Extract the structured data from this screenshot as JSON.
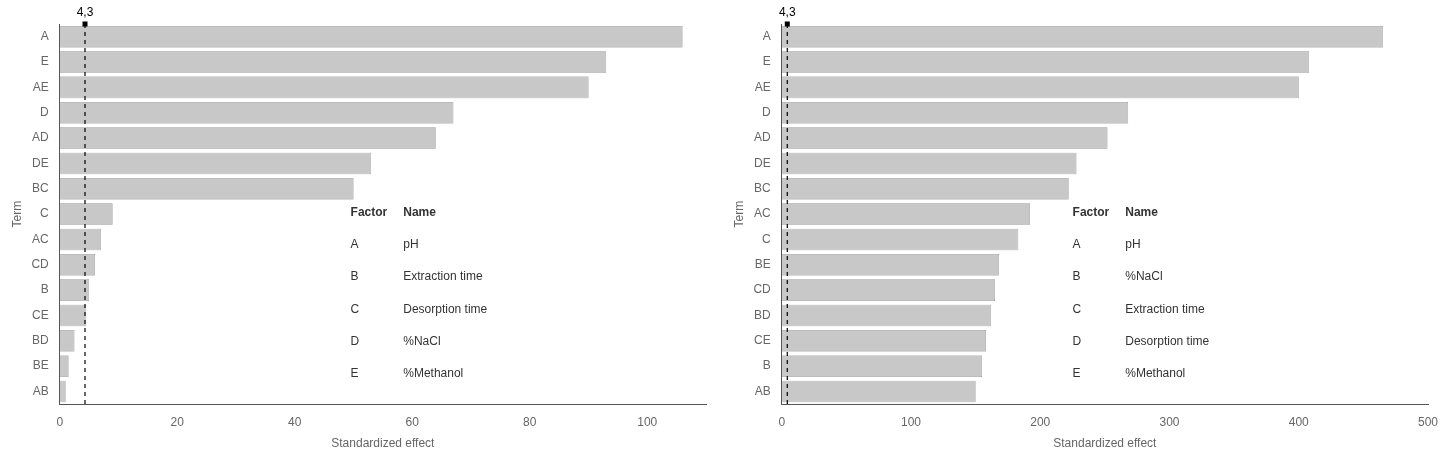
{
  "chart_data": [
    {
      "type": "bar",
      "orientation": "horizontal",
      "categories": [
        "AB",
        "BE",
        "BD",
        "CE",
        "B",
        "CD",
        "AC",
        "C",
        "BC",
        "DE",
        "AD",
        "D",
        "AE",
        "E",
        "A"
      ],
      "values": [
        1.0,
        1.5,
        2.5,
        4.5,
        5.0,
        6.0,
        7.0,
        9.0,
        50.0,
        53.0,
        64.0,
        67.0,
        90.0,
        93.0,
        106.0
      ],
      "color": "#c8c8c8",
      "xlabel": "Standardized effect",
      "ylabel": "Term",
      "xlim": [
        0,
        110
      ],
      "xticks": [
        0,
        20,
        40,
        60,
        80,
        100
      ],
      "grid": false,
      "ref_line": {
        "value": 4.3,
        "label": "4,3"
      },
      "factor_table": {
        "columns": [
          "Factor",
          "Name"
        ],
        "rows": [
          [
            "A",
            "pH"
          ],
          [
            "B",
            "Extraction time"
          ],
          [
            "C",
            "Desorption time"
          ],
          [
            "D",
            "%NaCl"
          ],
          [
            "E",
            "%Methanol"
          ]
        ]
      }
    },
    {
      "type": "bar",
      "orientation": "horizontal",
      "categories": [
        "AB",
        "B",
        "CE",
        "BD",
        "CD",
        "BE",
        "C",
        "AC",
        "BC",
        "DE",
        "AD",
        "D",
        "AE",
        "E",
        "A"
      ],
      "values": [
        150.0,
        155.0,
        158.0,
        162.0,
        165.0,
        168.0,
        183.0,
        192.0,
        222.0,
        228.0,
        252.0,
        268.0,
        400.0,
        408.0,
        465.0
      ],
      "color": "#c8c8c8",
      "xlabel": "Standardized effect",
      "ylabel": "Term",
      "xlim": [
        0,
        500
      ],
      "xticks": [
        0,
        100,
        200,
        300,
        400,
        500
      ],
      "grid": false,
      "ref_line": {
        "value": 4.3,
        "label": "4,3"
      },
      "factor_table": {
        "columns": [
          "Factor",
          "Name"
        ],
        "rows": [
          [
            "A",
            "pH"
          ],
          [
            "B",
            "%NaCl"
          ],
          [
            "C",
            "Extraction time"
          ],
          [
            "D",
            "Desorption time"
          ],
          [
            "E",
            "%Methanol"
          ]
        ]
      }
    }
  ]
}
